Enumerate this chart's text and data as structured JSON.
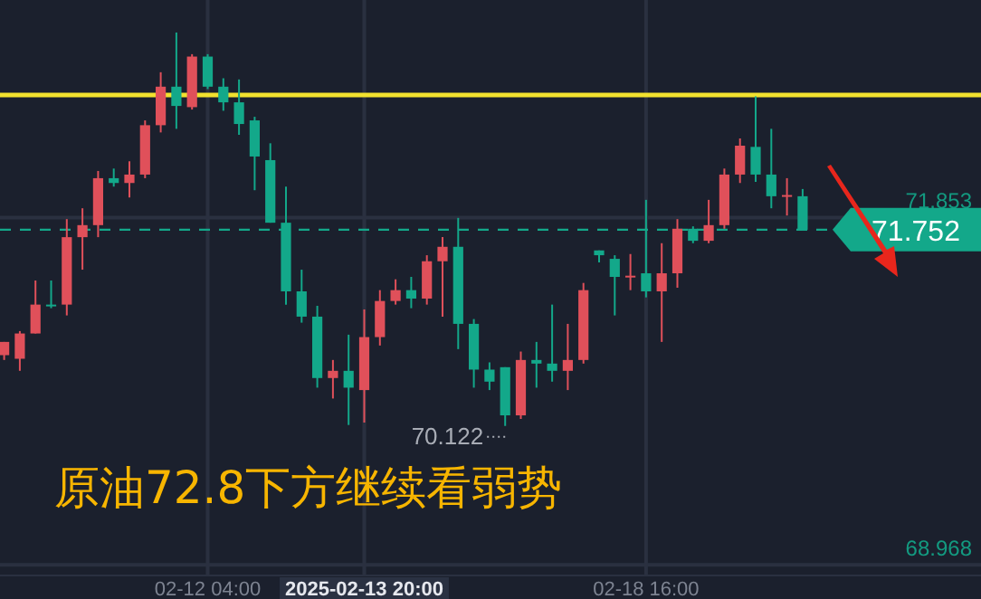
{
  "chart_data": {
    "type": "candlestick",
    "categories": [
      null,
      null,
      null,
      null,
      null,
      null,
      null,
      null,
      null,
      null,
      null,
      null,
      null,
      "02-12 04:00",
      null,
      null,
      null,
      null,
      null,
      null,
      null,
      null,
      null,
      "2025-02-13 20:00",
      null,
      null,
      null,
      null,
      null,
      null,
      null,
      null,
      null,
      null,
      null,
      null,
      null,
      null,
      null,
      null,
      null,
      "02-18 16:00",
      null,
      null,
      null,
      null,
      null,
      null,
      null,
      null,
      null,
      null
    ],
    "ohlc": [
      [
        70.71,
        70.82,
        70.67,
        70.82
      ],
      [
        70.68,
        70.91,
        70.58,
        70.89
      ],
      [
        70.89,
        71.33,
        70.89,
        71.13
      ],
      [
        71.13,
        71.33,
        71.1,
        71.12
      ],
      [
        71.13,
        71.84,
        71.04,
        71.69
      ],
      [
        71.69,
        71.93,
        71.42,
        71.79
      ],
      [
        71.79,
        72.24,
        71.69,
        72.18
      ],
      [
        72.18,
        72.26,
        72.11,
        72.14
      ],
      [
        72.14,
        72.32,
        72.02,
        72.21
      ],
      [
        72.21,
        72.66,
        72.18,
        72.62
      ],
      [
        72.62,
        73.06,
        72.56,
        72.94
      ],
      [
        72.94,
        73.39,
        72.59,
        72.78
      ],
      [
        72.77,
        73.21,
        72.75,
        73.19
      ],
      [
        73.19,
        73.21,
        72.92,
        72.94
      ],
      [
        72.94,
        73.01,
        72.74,
        72.81
      ],
      [
        72.81,
        73.0,
        72.54,
        72.63
      ],
      [
        72.66,
        72.69,
        72.08,
        72.36
      ],
      [
        72.33,
        72.47,
        71.81,
        71.81
      ],
      [
        71.81,
        72.11,
        71.13,
        71.24
      ],
      [
        71.24,
        71.42,
        70.98,
        71.03
      ],
      [
        71.03,
        71.12,
        70.44,
        70.52
      ],
      [
        70.52,
        70.67,
        70.35,
        70.58
      ],
      [
        70.58,
        70.88,
        70.13,
        70.44
      ],
      [
        70.42,
        71.09,
        70.15,
        70.86
      ],
      [
        70.86,
        71.25,
        70.79,
        71.16
      ],
      [
        71.16,
        71.34,
        71.13,
        71.25
      ],
      [
        71.25,
        71.36,
        71.1,
        71.18
      ],
      [
        71.18,
        71.54,
        71.13,
        71.49
      ],
      [
        71.49,
        71.69,
        71.03,
        71.61
      ],
      [
        71.61,
        71.85,
        70.76,
        70.97
      ],
      [
        70.97,
        71.01,
        70.44,
        70.59
      ],
      [
        70.59,
        70.65,
        70.42,
        70.49
      ],
      [
        70.61,
        70.61,
        70.122,
        70.21
      ],
      [
        70.21,
        70.74,
        70.18,
        70.67
      ],
      [
        70.67,
        70.82,
        70.44,
        70.64
      ],
      [
        70.64,
        71.13,
        70.49,
        70.58
      ],
      [
        70.58,
        70.97,
        70.42,
        70.67
      ],
      [
        70.67,
        71.31,
        70.64,
        71.25
      ],
      [
        71.58,
        71.58,
        71.48,
        71.54
      ],
      [
        71.51,
        71.54,
        71.04,
        71.36
      ],
      [
        71.36,
        71.55,
        71.25,
        71.37
      ],
      [
        71.39,
        72.0,
        71.19,
        71.24
      ],
      [
        71.24,
        71.64,
        70.82,
        71.39
      ],
      [
        71.39,
        71.84,
        71.27,
        71.76
      ],
      [
        71.76,
        71.78,
        71.64,
        71.66
      ],
      [
        71.66,
        72.0,
        71.64,
        71.79
      ],
      [
        71.79,
        72.26,
        71.76,
        72.21
      ],
      [
        72.21,
        72.51,
        72.14,
        72.45
      ],
      [
        72.44,
        72.86,
        72.15,
        72.21
      ],
      [
        72.21,
        72.59,
        71.93,
        72.03
      ],
      [
        72.03,
        72.18,
        71.87,
        72.04
      ],
      [
        72.03,
        72.09,
        71.75,
        71.752
      ]
    ],
    "colors": [
      "#e0505a",
      "#e0505a",
      "#e0505a",
      "#13a88a",
      "#e0505a",
      "#e0505a",
      "#e0505a",
      "#13a88a",
      "#e0505a",
      "#e0505a",
      "#e0505a",
      "#13a88a",
      "#e0505a",
      "#13a88a",
      "#13a88a",
      "#13a88a",
      "#13a88a",
      "#13a88a",
      "#13a88a",
      "#13a88a",
      "#13a88a",
      "#e0505a",
      "#13a88a",
      "#e0505a",
      "#e0505a",
      "#e0505a",
      "#13a88a",
      "#e0505a",
      "#e0505a",
      "#13a88a",
      "#13a88a",
      "#13a88a",
      "#13a88a",
      "#e0505a",
      "#13a88a",
      "#13a88a",
      "#e0505a",
      "#e0505a",
      "#13a88a",
      "#13a88a",
      "#e0505a",
      "#13a88a",
      "#e0505a",
      "#e0505a",
      "#13a88a",
      "#e0505a",
      "#e0505a",
      "#e0505a",
      "#13a88a",
      "#13a88a",
      "#e0505a",
      "#13a88a"
    ],
    "ylim": [
      68.88,
      73.66
    ],
    "yticks": [
      71.853,
      68.968
    ],
    "grid": true,
    "ref_lines": [
      {
        "axis": "y",
        "value": 72.87,
        "color": "#f2e12e",
        "line_style": "solid"
      },
      {
        "axis": "y",
        "value": 71.752,
        "label": "71.752",
        "color": "#13a88a",
        "line_style": "dashed"
      }
    ],
    "annotations": [
      "70.122",
      "原油72.8下方继续看弱势"
    ]
  }
}
